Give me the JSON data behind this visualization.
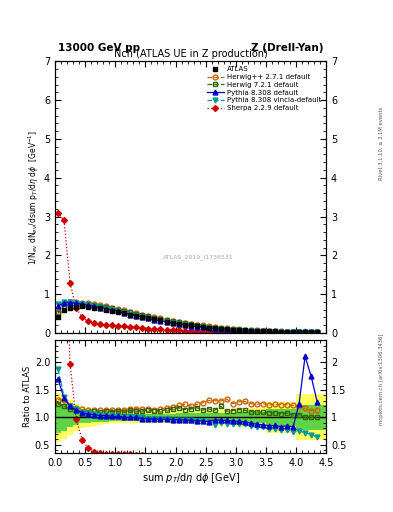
{
  "title_left": "13000 GeV pp",
  "title_right": "Z (Drell-Yan)",
  "plot_title": "Nch (ATLAS UE in Z production)",
  "xlabel": "sum $p_T$/d$\\eta$ d$\\phi$ [GeV]",
  "ylabel_main": "1/N$_{ev}$ dN$_{ev}$/dsum p$_T$/d$\\eta$ d$\\phi$  [GeV$^{-1}$]",
  "ylabel_ratio": "Ratio to ATLAS",
  "right_label_top": "Rivet 3.1.10, ≥ 3.1M events",
  "right_label_bot": "mcplots.cern.ch [arXiv:1306.3436]",
  "watermark": "ATLAS_2019_I1736531",
  "xlim": [
    0,
    4.5
  ],
  "ylim_main": [
    0,
    7
  ],
  "ylim_ratio": [
    0.35,
    2.4
  ],
  "atlas_x": [
    0.05,
    0.15,
    0.25,
    0.35,
    0.45,
    0.55,
    0.65,
    0.75,
    0.85,
    0.95,
    1.05,
    1.15,
    1.25,
    1.35,
    1.45,
    1.55,
    1.65,
    1.75,
    1.85,
    1.95,
    2.05,
    2.15,
    2.25,
    2.35,
    2.45,
    2.55,
    2.65,
    2.75,
    2.85,
    2.95,
    3.05,
    3.15,
    3.25,
    3.35,
    3.45,
    3.55,
    3.65,
    3.75,
    3.85,
    3.95,
    4.05,
    4.15,
    4.25,
    4.35
  ],
  "atlas_y": [
    0.4,
    0.58,
    0.65,
    0.67,
    0.68,
    0.67,
    0.65,
    0.63,
    0.6,
    0.57,
    0.54,
    0.51,
    0.47,
    0.44,
    0.41,
    0.38,
    0.35,
    0.32,
    0.29,
    0.26,
    0.23,
    0.21,
    0.19,
    0.17,
    0.15,
    0.13,
    0.115,
    0.1,
    0.09,
    0.08,
    0.07,
    0.062,
    0.056,
    0.05,
    0.044,
    0.039,
    0.034,
    0.03,
    0.026,
    0.023,
    0.02,
    0.018,
    0.016,
    0.014
  ],
  "atlas_yerr": [
    0.02,
    0.025,
    0.025,
    0.025,
    0.025,
    0.025,
    0.02,
    0.02,
    0.02,
    0.02,
    0.018,
    0.018,
    0.016,
    0.016,
    0.014,
    0.014,
    0.013,
    0.012,
    0.011,
    0.01,
    0.009,
    0.008,
    0.007,
    0.007,
    0.006,
    0.006,
    0.005,
    0.005,
    0.004,
    0.004,
    0.003,
    0.003,
    0.003,
    0.002,
    0.002,
    0.002,
    0.002,
    0.002,
    0.001,
    0.001,
    0.001,
    0.001,
    0.001,
    0.001
  ],
  "herwig271_x": [
    0.05,
    0.15,
    0.25,
    0.35,
    0.45,
    0.55,
    0.65,
    0.75,
    0.85,
    0.95,
    1.05,
    1.15,
    1.25,
    1.35,
    1.45,
    1.55,
    1.65,
    1.75,
    1.85,
    1.95,
    2.05,
    2.15,
    2.25,
    2.35,
    2.45,
    2.55,
    2.65,
    2.75,
    2.85,
    2.95,
    3.05,
    3.15,
    3.25,
    3.35,
    3.45,
    3.55,
    3.65,
    3.75,
    3.85,
    3.95,
    4.05,
    4.15,
    4.25,
    4.35
  ],
  "herwig271_y": [
    0.53,
    0.76,
    0.79,
    0.79,
    0.78,
    0.76,
    0.74,
    0.71,
    0.68,
    0.65,
    0.61,
    0.58,
    0.54,
    0.51,
    0.47,
    0.44,
    0.4,
    0.37,
    0.34,
    0.31,
    0.28,
    0.26,
    0.23,
    0.21,
    0.19,
    0.17,
    0.15,
    0.13,
    0.12,
    0.1,
    0.09,
    0.08,
    0.07,
    0.062,
    0.055,
    0.048,
    0.042,
    0.037,
    0.032,
    0.028,
    0.024,
    0.021,
    0.018,
    0.016
  ],
  "herwig721_x": [
    0.05,
    0.15,
    0.25,
    0.35,
    0.45,
    0.55,
    0.65,
    0.75,
    0.85,
    0.95,
    1.05,
    1.15,
    1.25,
    1.35,
    1.45,
    1.55,
    1.65,
    1.75,
    1.85,
    1.95,
    2.05,
    2.15,
    2.25,
    2.35,
    2.45,
    2.55,
    2.65,
    2.75,
    2.85,
    2.95,
    3.05,
    3.15,
    3.25,
    3.35,
    3.45,
    3.55,
    3.65,
    3.75,
    3.85,
    3.95,
    4.05,
    4.15,
    4.25,
    4.35
  ],
  "herwig721_y": [
    0.5,
    0.7,
    0.75,
    0.76,
    0.75,
    0.74,
    0.72,
    0.69,
    0.67,
    0.63,
    0.6,
    0.56,
    0.53,
    0.49,
    0.46,
    0.43,
    0.39,
    0.36,
    0.33,
    0.3,
    0.27,
    0.24,
    0.22,
    0.2,
    0.17,
    0.15,
    0.13,
    0.12,
    0.1,
    0.09,
    0.08,
    0.07,
    0.062,
    0.055,
    0.048,
    0.042,
    0.037,
    0.032,
    0.028,
    0.024,
    0.021,
    0.018,
    0.016,
    0.014
  ],
  "pythia8_x": [
    0.05,
    0.15,
    0.25,
    0.35,
    0.45,
    0.55,
    0.65,
    0.75,
    0.85,
    0.95,
    1.05,
    1.15,
    1.25,
    1.35,
    1.45,
    1.55,
    1.65,
    1.75,
    1.85,
    1.95,
    2.05,
    2.15,
    2.25,
    2.35,
    2.45,
    2.55,
    2.65,
    2.75,
    2.85,
    2.95,
    3.05,
    3.15,
    3.25,
    3.35,
    3.45,
    3.55,
    3.65,
    3.75,
    3.85,
    3.95,
    4.05,
    4.15,
    4.25,
    4.35
  ],
  "pythia8_y": [
    0.68,
    0.78,
    0.78,
    0.76,
    0.74,
    0.71,
    0.68,
    0.65,
    0.62,
    0.58,
    0.55,
    0.51,
    0.47,
    0.44,
    0.4,
    0.37,
    0.34,
    0.31,
    0.28,
    0.25,
    0.22,
    0.2,
    0.18,
    0.16,
    0.14,
    0.12,
    0.11,
    0.095,
    0.085,
    0.075,
    0.065,
    0.057,
    0.05,
    0.044,
    0.038,
    0.033,
    0.029,
    0.025,
    0.022,
    0.019,
    0.025,
    0.038,
    0.028,
    0.018
  ],
  "pythia8vincia_x": [
    0.05,
    0.15,
    0.25,
    0.35,
    0.45,
    0.55,
    0.65,
    0.75,
    0.85,
    0.95,
    1.05,
    1.15,
    1.25,
    1.35,
    1.45,
    1.55,
    1.65,
    1.75,
    1.85,
    1.95,
    2.05,
    2.15,
    2.25,
    2.35,
    2.45,
    2.55,
    2.65,
    2.75,
    2.85,
    2.95,
    3.05,
    3.15,
    3.25,
    3.35,
    3.45,
    3.55,
    3.65,
    3.75,
    3.85,
    3.95,
    4.05,
    4.15,
    4.25,
    4.35
  ],
  "pythia8vincia_y": [
    0.75,
    0.8,
    0.79,
    0.77,
    0.75,
    0.72,
    0.69,
    0.66,
    0.62,
    0.59,
    0.55,
    0.51,
    0.48,
    0.44,
    0.41,
    0.37,
    0.34,
    0.31,
    0.28,
    0.25,
    0.22,
    0.2,
    0.18,
    0.16,
    0.14,
    0.12,
    0.1,
    0.09,
    0.08,
    0.07,
    0.062,
    0.054,
    0.047,
    0.041,
    0.036,
    0.031,
    0.027,
    0.023,
    0.02,
    0.017,
    0.015,
    0.013,
    0.011,
    0.009
  ],
  "sherpa_x": [
    0.05,
    0.15,
    0.25,
    0.35,
    0.45,
    0.55,
    0.65,
    0.75,
    0.85,
    0.95,
    1.05,
    1.15,
    1.25,
    1.35,
    1.45,
    1.55,
    1.65,
    1.75,
    1.85,
    1.95,
    2.05,
    2.15,
    2.25,
    2.35,
    2.45,
    2.55,
    2.65,
    2.75,
    2.85,
    2.95,
    3.05,
    3.15,
    3.25,
    3.35,
    3.45,
    3.55,
    3.65,
    3.75,
    3.85,
    3.95,
    4.05,
    4.15,
    4.25,
    4.35
  ],
  "sherpa_y": [
    3.1,
    2.9,
    1.28,
    0.65,
    0.4,
    0.3,
    0.24,
    0.22,
    0.2,
    0.19,
    0.18,
    0.17,
    0.16,
    0.14,
    0.13,
    0.11,
    0.1,
    0.09,
    0.08,
    0.07,
    0.06,
    0.05,
    0.04,
    0.03,
    0.025,
    0.018,
    0.014,
    0.011,
    0.009,
    0.007,
    0.006,
    0.005,
    0.004,
    0.003,
    0.003,
    0.002,
    0.002,
    0.002,
    0.001,
    0.001,
    0.001,
    0.001,
    0.001,
    0.001
  ],
  "colors": {
    "atlas": "#000000",
    "herwig271": "#cc6600",
    "herwig721": "#336600",
    "pythia8": "#0000cc",
    "pythia8vincia": "#009999",
    "sherpa": "#cc0000"
  },
  "yellow_bins": [
    0.0,
    0.1,
    0.2,
    0.3,
    0.4,
    0.5,
    0.6,
    0.7,
    0.8,
    0.9,
    1.0,
    1.25,
    1.5,
    1.75,
    2.0,
    2.5,
    3.0,
    3.5,
    4.0,
    4.5
  ],
  "yellow_lo": [
    0.55,
    0.6,
    0.68,
    0.75,
    0.8,
    0.83,
    0.85,
    0.87,
    0.88,
    0.89,
    0.89,
    0.9,
    0.9,
    0.9,
    0.88,
    0.87,
    0.83,
    0.72,
    0.58,
    0.5
  ],
  "yellow_hi": [
    1.45,
    1.4,
    1.32,
    1.25,
    1.2,
    1.17,
    1.15,
    1.13,
    1.12,
    1.11,
    1.11,
    1.1,
    1.1,
    1.1,
    1.12,
    1.13,
    1.17,
    1.28,
    1.42,
    1.5
  ],
  "green_lo": [
    0.72,
    0.76,
    0.82,
    0.86,
    0.89,
    0.9,
    0.91,
    0.92,
    0.92,
    0.93,
    0.93,
    0.93,
    0.93,
    0.93,
    0.92,
    0.92,
    0.9,
    0.85,
    0.77,
    0.72
  ],
  "green_hi": [
    1.28,
    1.24,
    1.18,
    1.14,
    1.11,
    1.1,
    1.09,
    1.08,
    1.08,
    1.07,
    1.07,
    1.07,
    1.07,
    1.07,
    1.08,
    1.08,
    1.1,
    1.15,
    1.23,
    1.28
  ]
}
